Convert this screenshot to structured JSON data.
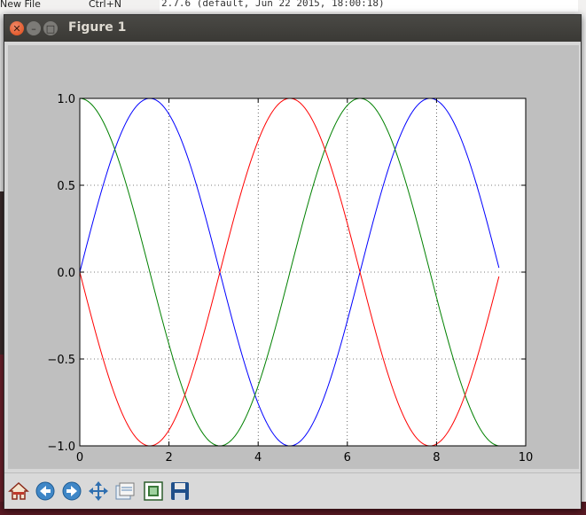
{
  "background": {
    "menu_label": "New File",
    "menu_shortcut": "Ctrl+N",
    "terminal_line": "2.7.6 (default, Jun 22 2015, 18:00:18)"
  },
  "window": {
    "title": "Figure 1"
  },
  "toolbar": {
    "buttons": [
      "home-icon",
      "back-icon",
      "forward-icon",
      "pan-icon",
      "zoom-icon",
      "subplots-icon",
      "save-icon"
    ]
  },
  "chart_data": {
    "type": "line",
    "title": "",
    "xlabel": "",
    "ylabel": "",
    "xlim": [
      0,
      10
    ],
    "ylim": [
      -1.0,
      1.0
    ],
    "x_ticks": [
      "0",
      "2",
      "4",
      "6",
      "8",
      "10"
    ],
    "y_ticks": [
      "1.0",
      "0.5",
      "0.0",
      "−0.5",
      "−1.0"
    ],
    "grid": true,
    "x_range": [
      0,
      9.4
    ],
    "series": [
      {
        "color": "#0000ff",
        "x": [
          0,
          1.571,
          3.142,
          4.712,
          6.283,
          7.854,
          9.4
        ],
        "y": [
          0,
          1.0,
          0,
          -1.0,
          0,
          1.0,
          0.03
        ]
      },
      {
        "color": "#008000",
        "x": [
          0,
          1.571,
          3.142,
          4.712,
          6.283,
          7.854,
          9.4
        ],
        "y": [
          1.0,
          0,
          -1.0,
          0,
          1.0,
          0,
          -1.0
        ]
      },
      {
        "color": "#ff0000",
        "x": [
          0,
          1.571,
          3.142,
          4.712,
          6.283,
          7.854,
          9.4
        ],
        "y": [
          0,
          -1.0,
          0,
          1.0,
          0,
          -1.0,
          -0.03
        ]
      }
    ]
  }
}
